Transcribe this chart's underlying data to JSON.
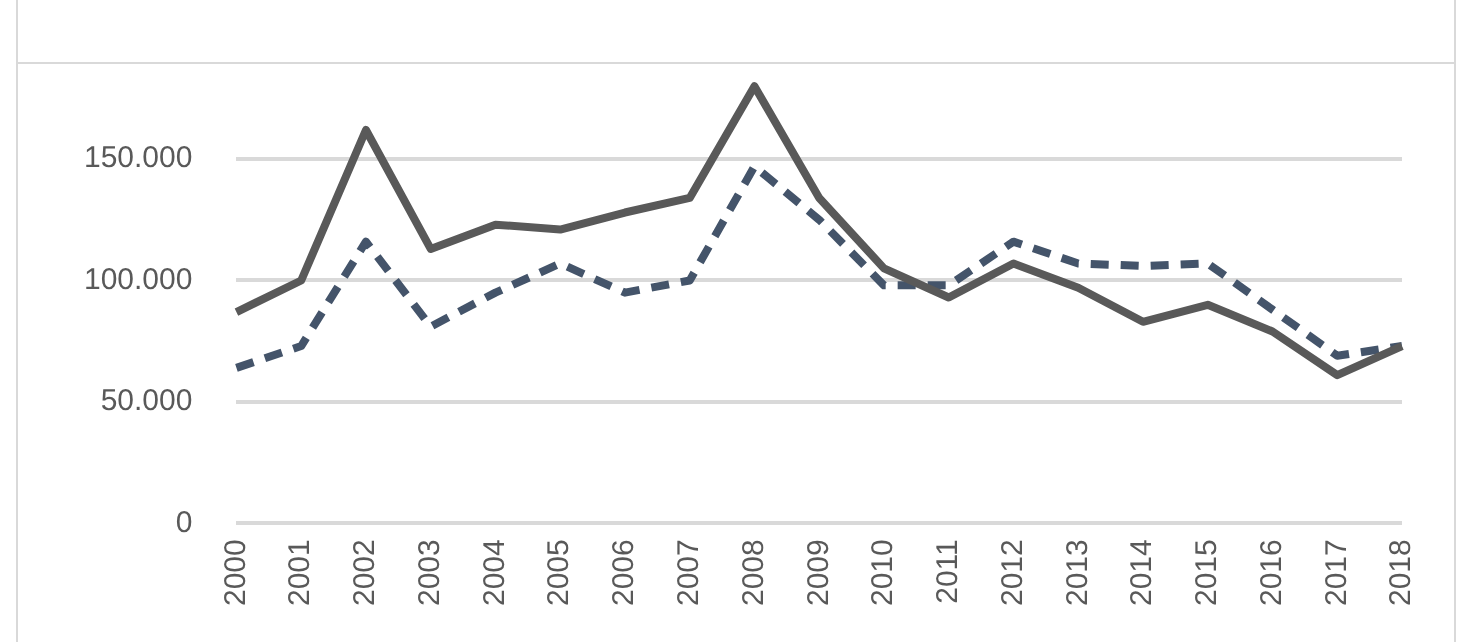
{
  "chart_data": {
    "type": "line",
    "categories": [
      "2000",
      "2001",
      "2002",
      "2003",
      "2004",
      "2005",
      "2006",
      "2007",
      "2008",
      "2009",
      "2010",
      "2011",
      "2012",
      "2013",
      "2014",
      "2015",
      "2016",
      "2017",
      "2018"
    ],
    "series": [
      {
        "color": "#595959",
        "line_style": "solid",
        "values": [
          87000,
          100000,
          162000,
          113000,
          123000,
          121000,
          128000,
          134000,
          180000,
          134000,
          105000,
          93000,
          107000,
          97000,
          83000,
          90000,
          79000,
          61000,
          73000
        ]
      },
      {
        "color": "#44546a",
        "line_style": "dashed",
        "values": [
          64000,
          73000,
          116000,
          81000,
          95000,
          107000,
          95000,
          100000,
          147000,
          125000,
          98000,
          98000,
          116000,
          107000,
          106000,
          107000,
          88000,
          69000,
          73000
        ]
      }
    ],
    "ylim": [
      0,
      190000
    ],
    "yticks": [
      0,
      {
        "value": 50000,
        "label": "50.000"
      },
      {
        "value": 100000,
        "label": "100.000"
      },
      {
        "value": 150000,
        "label": "150.000"
      }
    ],
    "grid": "y",
    "legend": false,
    "marker": "none"
  }
}
